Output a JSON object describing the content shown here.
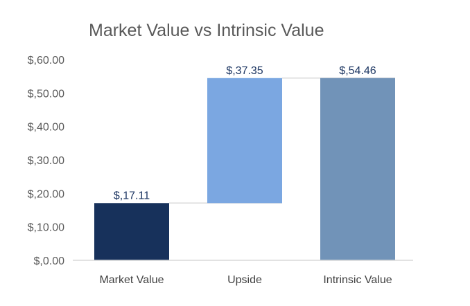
{
  "chart_data": {
    "type": "bar",
    "title": "Market Value vs Intrinsic Value",
    "xlabel": "",
    "ylabel": "",
    "categories": [
      "Market Value",
      "Upside",
      "Intrinsic Value"
    ],
    "bars": [
      {
        "category": "Market Value",
        "start": 0,
        "end": 17.11,
        "label": "$,17.11",
        "color": "#17315b"
      },
      {
        "category": "Upside",
        "start": 17.11,
        "end": 54.46,
        "label": "$,37.35",
        "color": "#7ba7e1"
      },
      {
        "category": "Intrinsic Value",
        "start": 0,
        "end": 54.46,
        "label": "$,54.46",
        "color": "#7193b8"
      }
    ],
    "values": [
      17.11,
      37.35,
      54.46
    ],
    "ylim": [
      0,
      60
    ],
    "yticks": [
      0,
      10,
      20,
      30,
      40,
      50,
      60
    ],
    "ytick_labels": [
      "$,0.00",
      "$,10.00",
      "$,20.00",
      "$,30.00",
      "$,40.00",
      "$,50.00",
      "$,60.00"
    ],
    "grid": false,
    "legend": "none",
    "connector_color": "#d9d9d9",
    "axis_color": "#d9d9d9",
    "label_color": "#1f3864",
    "tick_color": "#595959"
  }
}
